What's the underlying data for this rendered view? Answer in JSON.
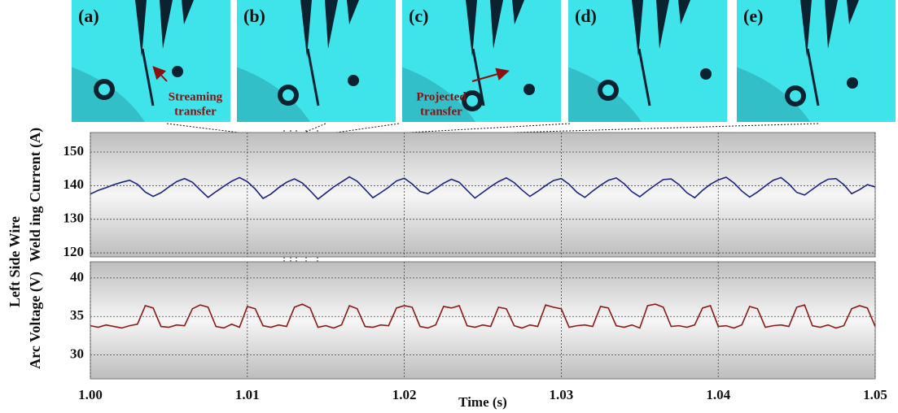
{
  "images": [
    {
      "label": "(a)",
      "annotation": [
        "Streaming",
        "transfer"
      ]
    },
    {
      "label": "(b)"
    },
    {
      "label": "(c)",
      "annotation": [
        "Projected",
        "transfer"
      ]
    },
    {
      "label": "(d)"
    },
    {
      "label": "(e)"
    }
  ],
  "shared_ylabel": "Left Side Wire",
  "chart_data": [
    {
      "type": "line",
      "ylabel": "Weld ing Current (A)",
      "x": [
        1,
        1.0005,
        1.001,
        1.0015,
        1.002,
        1.0025,
        1.003,
        1.0035,
        1.004,
        1.0045,
        1.005,
        1.0055,
        1.006,
        1.0065,
        1.007,
        1.0075,
        1.008,
        1.0085,
        1.009,
        1.0095,
        1.01,
        1.0105,
        1.011,
        1.0115,
        1.012,
        1.0125,
        1.013,
        1.0135,
        1.014,
        1.0145,
        1.015,
        1.0155,
        1.016,
        1.0165,
        1.017,
        1.0175,
        1.018,
        1.0185,
        1.019,
        1.0195,
        1.02,
        1.0205,
        1.021,
        1.0215,
        1.022,
        1.0225,
        1.023,
        1.0235,
        1.024,
        1.0245,
        1.025,
        1.0255,
        1.026,
        1.0265,
        1.027,
        1.0275,
        1.028,
        1.0285,
        1.029,
        1.0295,
        1.03,
        1.0305,
        1.031,
        1.0315,
        1.032,
        1.0325,
        1.033,
        1.0335,
        1.034,
        1.0345,
        1.035,
        1.0355,
        1.036,
        1.0365,
        1.037,
        1.0375,
        1.038,
        1.0385,
        1.039,
        1.0395,
        1.04,
        1.0405,
        1.041,
        1.0415,
        1.042,
        1.0425,
        1.043,
        1.0435,
        1.044,
        1.0445,
        1.045,
        1.0455,
        1.046,
        1.0465,
        1.047,
        1.0475,
        1.048,
        1.0485,
        1.049,
        1.0495,
        1.05
      ],
      "series": [
        {
          "color": "#1c2480",
          "values": [
            137.5,
            138.6,
            139.4,
            140.3,
            141.0,
            141.6,
            140.4,
            138.1,
            136.8,
            137.9,
            139.6,
            141.2,
            142.1,
            141.0,
            138.7,
            136.5,
            138.2,
            139.8,
            141.3,
            142.4,
            141.2,
            139.0,
            136.2,
            137.5,
            139.4,
            141.0,
            142.0,
            140.8,
            138.5,
            136.0,
            137.8,
            139.6,
            141.1,
            142.6,
            141.3,
            138.9,
            136.4,
            137.9,
            139.5,
            141.4,
            142.2,
            140.5,
            138.3,
            137.6,
            139.1,
            140.7,
            141.9,
            141.0,
            138.6,
            136.3,
            138.0,
            139.7,
            141.2,
            142.3,
            140.9,
            138.7,
            136.8,
            138.3,
            140.0,
            141.5,
            142.1,
            140.4,
            138.0,
            136.5,
            138.4,
            140.1,
            141.6,
            142.3,
            140.6,
            138.2,
            136.7,
            138.5,
            140.2,
            141.8,
            142.0,
            140.3,
            137.9,
            136.4,
            138.6,
            140.4,
            141.7,
            142.5,
            140.8,
            138.4,
            136.6,
            138.1,
            139.9,
            141.6,
            142.4,
            140.5,
            138.0,
            137.2,
            138.9,
            140.6,
            141.9,
            142.1,
            140.3,
            137.6,
            138.8,
            140.3,
            139.6
          ]
        }
      ],
      "xlim": [
        1,
        1.05
      ],
      "ylim": [
        118.8,
        155.8
      ],
      "yticks": [
        120,
        130,
        140,
        150
      ],
      "grid": true
    },
    {
      "type": "line",
      "ylabel": "Arc Voltage (V)",
      "xlabel": "Time (s)",
      "x": [
        1,
        1.0005,
        1.001,
        1.0015,
        1.002,
        1.0025,
        1.003,
        1.0035,
        1.004,
        1.0045,
        1.005,
        1.0055,
        1.006,
        1.0065,
        1.007,
        1.0075,
        1.008,
        1.0085,
        1.009,
        1.0095,
        1.01,
        1.0105,
        1.011,
        1.0115,
        1.012,
        1.0125,
        1.013,
        1.0135,
        1.014,
        1.0145,
        1.015,
        1.0155,
        1.016,
        1.0165,
        1.017,
        1.0175,
        1.018,
        1.0185,
        1.019,
        1.0195,
        1.02,
        1.0205,
        1.021,
        1.0215,
        1.022,
        1.0225,
        1.023,
        1.0235,
        1.024,
        1.0245,
        1.025,
        1.0255,
        1.026,
        1.0265,
        1.027,
        1.0275,
        1.028,
        1.0285,
        1.029,
        1.0295,
        1.03,
        1.0305,
        1.031,
        1.0315,
        1.032,
        1.0325,
        1.033,
        1.0335,
        1.034,
        1.0345,
        1.035,
        1.0355,
        1.036,
        1.0365,
        1.037,
        1.0375,
        1.038,
        1.0385,
        1.039,
        1.0395,
        1.04,
        1.0405,
        1.041,
        1.0415,
        1.042,
        1.0425,
        1.043,
        1.0435,
        1.044,
        1.0445,
        1.045,
        1.0455,
        1.046,
        1.0465,
        1.047,
        1.0475,
        1.048,
        1.0485,
        1.049,
        1.0495,
        1.05
      ],
      "series": [
        {
          "color": "#8b1a1a",
          "values": [
            33.8,
            33.6,
            33.9,
            33.7,
            33.5,
            33.8,
            34.0,
            36.4,
            36.1,
            33.7,
            33.6,
            33.9,
            33.8,
            36.0,
            36.5,
            36.2,
            33.7,
            33.5,
            34.0,
            33.6,
            36.3,
            36.0,
            33.8,
            33.6,
            33.9,
            33.7,
            36.2,
            36.6,
            36.1,
            33.6,
            33.8,
            33.5,
            33.9,
            36.4,
            36.0,
            33.7,
            33.6,
            33.9,
            33.8,
            36.1,
            36.4,
            36.2,
            33.7,
            33.5,
            33.9,
            36.3,
            36.1,
            36.4,
            33.8,
            33.6,
            33.9,
            33.7,
            36.2,
            36.0,
            33.8,
            33.5,
            33.9,
            33.7,
            36.5,
            36.2,
            36.0,
            33.6,
            33.8,
            33.9,
            33.7,
            36.3,
            36.1,
            33.8,
            33.6,
            33.9,
            33.5,
            36.4,
            36.6,
            36.2,
            33.7,
            33.8,
            33.6,
            33.9,
            36.1,
            36.4,
            33.7,
            33.8,
            33.5,
            33.9,
            36.3,
            36.0,
            33.6,
            33.8,
            33.9,
            33.7,
            36.2,
            36.5,
            33.8,
            33.6,
            33.9,
            33.5,
            33.8,
            36.0,
            36.4,
            36.1,
            33.7
          ]
        }
      ],
      "xlim": [
        1,
        1.05
      ],
      "ylim": [
        26.9,
        42.1
      ],
      "yticks": [
        30,
        35,
        40
      ],
      "xticks": [
        {
          "value": 1,
          "label": "1.00"
        },
        1.01,
        1.02,
        1.03,
        1.04,
        1.05
      ],
      "grid": true
    }
  ]
}
